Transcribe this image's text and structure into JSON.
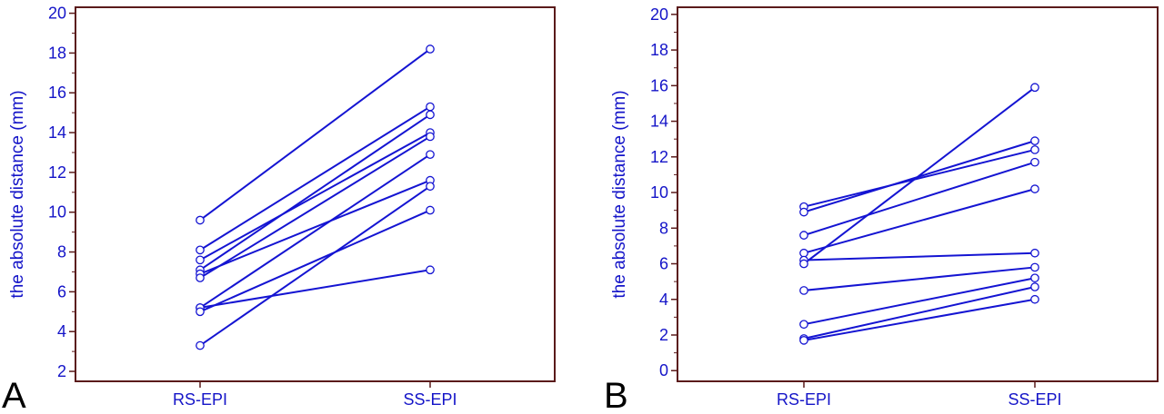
{
  "colors": {
    "frame": "#5a1a1a",
    "series": "#1414d2",
    "text": "#1414c8",
    "letter": "#000000"
  },
  "chart_data": [
    {
      "type": "line",
      "panel_label": "A",
      "ylabel": "the absolute distance (mm)",
      "categories": [
        "RS-EPI",
        "SS-EPI"
      ],
      "ylim": [
        1.5,
        20.3
      ],
      "yticks": [
        2,
        4,
        6,
        8,
        10,
        12,
        14,
        16,
        18,
        20
      ],
      "grid": false,
      "series": [
        {
          "values": [
            9.6,
            18.2
          ]
        },
        {
          "values": [
            8.1,
            15.3
          ]
        },
        {
          "values": [
            7.6,
            14.0
          ]
        },
        {
          "values": [
            7.1,
            14.9
          ]
        },
        {
          "values": [
            6.9,
            11.6
          ]
        },
        {
          "values": [
            6.7,
            13.8
          ]
        },
        {
          "values": [
            5.2,
            12.9
          ]
        },
        {
          "values": [
            5.2,
            7.1
          ]
        },
        {
          "values": [
            5.0,
            10.1
          ]
        },
        {
          "values": [
            3.3,
            11.3
          ]
        }
      ]
    },
    {
      "type": "line",
      "panel_label": "B",
      "ylabel": "the absolute distance (mm)",
      "categories": [
        "RS-EPI",
        "SS-EPI"
      ],
      "ylim": [
        -0.6,
        20.4
      ],
      "yticks": [
        0,
        2,
        4,
        6,
        8,
        10,
        12,
        14,
        16,
        18,
        20
      ],
      "grid": false,
      "series": [
        {
          "values": [
            9.2,
            12.4
          ]
        },
        {
          "values": [
            8.9,
            12.9
          ]
        },
        {
          "values": [
            7.6,
            11.7
          ]
        },
        {
          "values": [
            6.6,
            10.2
          ]
        },
        {
          "values": [
            6.2,
            6.6
          ]
        },
        {
          "values": [
            6.0,
            15.9
          ]
        },
        {
          "values": [
            4.5,
            5.8
          ]
        },
        {
          "values": [
            2.6,
            5.2
          ]
        },
        {
          "values": [
            1.8,
            4.7
          ]
        },
        {
          "values": [
            1.7,
            4.0
          ]
        }
      ]
    }
  ]
}
